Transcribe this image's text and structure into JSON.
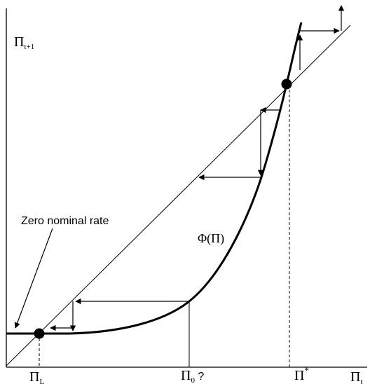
{
  "diagram": {
    "y_axis_label": "Π",
    "y_axis_subscript": "t+1",
    "x_axis_label": "Π",
    "x_axis_subscript": "t",
    "curve_label": "Φ(Π)",
    "annotation": "Zero nominal rate",
    "tick_low": "Π",
    "tick_low_subscript": "L",
    "tick_mid": "Π",
    "tick_mid_subscript": "0",
    "tick_mid_suffix": " ?",
    "tick_high": "Π",
    "tick_high_superscript": "*"
  },
  "colors": {
    "ink": "#000000",
    "background": "#ffffff"
  }
}
